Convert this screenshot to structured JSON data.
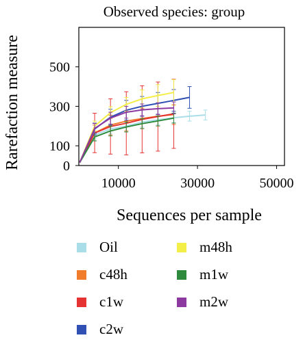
{
  "chart_data": {
    "type": "line",
    "title": "Observed species: group",
    "xlabel": "Sequences per sample",
    "ylabel": "Rarefaction measure",
    "xlim": [
      0,
      52000
    ],
    "ylim": [
      0,
      700
    ],
    "xticks": [
      10000,
      30000,
      50000
    ],
    "xtick_labels": [
      "10000",
      "30000",
      "50000"
    ],
    "yticks": [
      0,
      100,
      300,
      500
    ],
    "ytick_labels": [
      "0",
      "100",
      "300",
      "500"
    ],
    "grid": false,
    "legend_position": "bottom",
    "series": [
      {
        "name": "Oil",
        "color": "#a9dde8",
        "x": [
          200,
          4000,
          8000,
          12000,
          16000,
          20000,
          24000,
          28000,
          32000
        ],
        "y": [
          15,
          155,
          185,
          200,
          220,
          232,
          242,
          250,
          256
        ],
        "err": [
          0,
          20,
          25,
          25,
          25,
          25,
          25,
          25,
          25
        ]
      },
      {
        "name": "c48h",
        "color": "#f07c2c",
        "x": [
          200,
          4000,
          8000,
          12000,
          16000,
          20000,
          24000
        ],
        "y": [
          15,
          165,
          205,
          225,
          238,
          250,
          258
        ],
        "err": [
          0,
          40,
          50,
          50,
          50,
          50,
          50
        ]
      },
      {
        "name": "c1w",
        "color": "#e53232",
        "x": [
          200,
          4000,
          8000,
          12000,
          16000,
          20000,
          24000
        ],
        "y": [
          15,
          165,
          198,
          214,
          234,
          248,
          262
        ],
        "err": [
          0,
          100,
          140,
          160,
          170,
          175,
          175
        ]
      },
      {
        "name": "c2w",
        "color": "#3050b4",
        "x": [
          200,
          4000,
          8000,
          12000,
          16000,
          20000,
          24000,
          28000
        ],
        "y": [
          15,
          185,
          245,
          280,
          300,
          315,
          330,
          345
        ],
        "err": [
          0,
          30,
          40,
          50,
          50,
          55,
          55,
          55
        ]
      },
      {
        "name": "m48h",
        "color": "#f3ee48",
        "x": [
          200,
          4000,
          8000,
          12000,
          16000,
          20000,
          24000
        ],
        "y": [
          15,
          200,
          268,
          310,
          338,
          355,
          370
        ],
        "err": [
          0,
          25,
          30,
          35,
          45,
          55,
          65
        ]
      },
      {
        "name": "m1w",
        "color": "#2e8a3c",
        "x": [
          200,
          4000,
          8000,
          12000,
          16000,
          20000,
          24000
        ],
        "y": [
          15,
          145,
          175,
          195,
          212,
          226,
          240
        ],
        "err": [
          0,
          20,
          25,
          25,
          25,
          25,
          25
        ]
      },
      {
        "name": "m2w",
        "color": "#8c3aa0",
        "x": [
          200,
          4000,
          8000,
          12000,
          16000,
          20000,
          24000
        ],
        "y": [
          15,
          188,
          240,
          270,
          282,
          288,
          292
        ],
        "err": [
          0,
          25,
          30,
          30,
          30,
          30,
          30
        ]
      }
    ]
  }
}
